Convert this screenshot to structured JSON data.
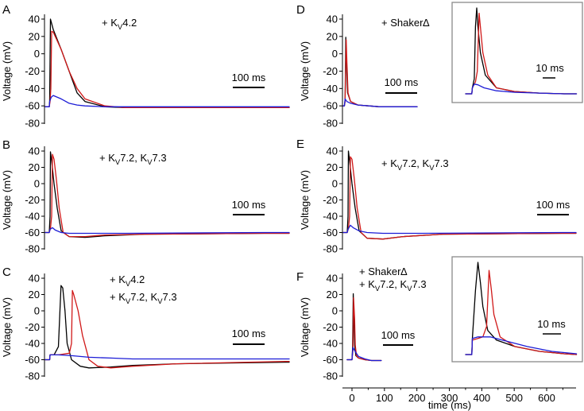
{
  "colors": {
    "black": "#000000",
    "red": "#d01818",
    "blue": "#1c1cd6",
    "inset_border": "#8a8a8a"
  },
  "yticks": [
    "40",
    "20",
    "0",
    "-20",
    "-40",
    "-60",
    "-80"
  ],
  "ylabel": "Voltage (mV)",
  "xaxis": {
    "ticks": [
      "0",
      "100",
      "200",
      "300",
      "400",
      "500",
      "600"
    ],
    "label": "time (ms)"
  },
  "scale_bar_main": "100 ms",
  "scale_bar_inset": "10 ms",
  "panels": [
    {
      "id": "A",
      "label": "A",
      "annotation_lines": [
        [
          "+ K",
          "V",
          "4.2"
        ]
      ]
    },
    {
      "id": "B",
      "label": "B",
      "annotation_lines": [
        [
          "+ K",
          "V",
          "7.2, K",
          "V",
          "7.3"
        ]
      ]
    },
    {
      "id": "C",
      "label": "C",
      "annotation_lines": [
        [
          "+ K",
          "V",
          "4.2"
        ],
        [
          "+ K",
          "V",
          "7.2, K",
          "V",
          "7.3"
        ]
      ]
    },
    {
      "id": "D",
      "label": "D",
      "annotation_lines": [
        [
          "+ Shaker∆"
        ]
      ]
    },
    {
      "id": "E",
      "label": "E",
      "annotation_lines": [
        [
          "+ K",
          "V",
          "7.2, K",
          "V",
          "7.3"
        ]
      ]
    },
    {
      "id": "F",
      "label": "F",
      "annotation_lines": [
        [
          "+ Shaker∆"
        ],
        [
          "+ K",
          "V",
          "7.2, K",
          "V",
          "7.3"
        ]
      ]
    }
  ],
  "chart_data": [
    {
      "panel": "A",
      "type": "line",
      "ylabel": "Voltage (mV)",
      "ylim": [
        -80,
        45
      ],
      "series": [
        {
          "color": "black",
          "x": [
            0,
            10,
            11,
            13,
            20,
            40,
            60,
            80,
            100,
            150,
            200,
            300,
            400,
            550
          ],
          "y": [
            -61,
            -61,
            -55,
            40,
            28,
            5,
            -20,
            -45,
            -55,
            -61,
            -62,
            -62,
            -62,
            -62
          ]
        },
        {
          "color": "red",
          "x": [
            0,
            10,
            12,
            14,
            16,
            20,
            40,
            60,
            80,
            100,
            150,
            200,
            300,
            400,
            550
          ],
          "y": [
            -61,
            -61,
            -55,
            -40,
            26,
            25,
            5,
            -20,
            -40,
            -52,
            -60,
            -62,
            -62,
            -62,
            -62
          ]
        },
        {
          "color": "blue",
          "x": [
            0,
            10,
            11,
            15,
            20,
            40,
            60,
            80,
            100,
            150,
            200,
            300,
            550
          ],
          "y": [
            -61,
            -61,
            -55,
            -50,
            -48,
            -52,
            -57,
            -59,
            -60,
            -61,
            -61,
            -61,
            -61
          ]
        }
      ]
    },
    {
      "panel": "B",
      "type": "line",
      "ylabel": "Voltage (mV)",
      "ylim": [
        -80,
        45
      ],
      "series": [
        {
          "color": "black",
          "x": [
            0,
            10,
            12,
            13,
            16,
            22,
            30,
            40,
            60,
            100,
            150,
            250,
            550
          ],
          "y": [
            -60,
            -60,
            -40,
            39,
            28,
            0,
            -30,
            -58,
            -65,
            -66,
            -64,
            -62,
            -61
          ]
        },
        {
          "color": "red",
          "x": [
            0,
            10,
            13,
            16,
            18,
            22,
            28,
            35,
            45,
            60,
            100,
            150,
            250,
            550
          ],
          "y": [
            -60,
            -60,
            -55,
            -40,
            36,
            30,
            5,
            -30,
            -60,
            -65,
            -65,
            -63,
            -62,
            -61
          ]
        },
        {
          "color": "blue",
          "x": [
            0,
            10,
            12,
            18,
            25,
            40,
            60,
            100,
            200,
            550
          ],
          "y": [
            -60,
            -60,
            -56,
            -54,
            -57,
            -60,
            -61,
            -61,
            -61,
            -60
          ]
        }
      ]
    },
    {
      "panel": "C",
      "type": "line",
      "ylabel": "Voltage (mV)",
      "ylim": [
        -80,
        45
      ],
      "series": [
        {
          "color": "black",
          "x": [
            0,
            10,
            11,
            20,
            30,
            36,
            40,
            45,
            50,
            60,
            80,
            100,
            150,
            200,
            300,
            550
          ],
          "y": [
            -60,
            -60,
            -54,
            -54,
            -44,
            31,
            28,
            0,
            -40,
            -60,
            -68,
            -70,
            -69,
            -67,
            -65,
            -63
          ]
        },
        {
          "color": "red",
          "x": [
            0,
            10,
            11,
            30,
            55,
            60,
            62,
            65,
            75,
            85,
            100,
            120,
            150,
            200,
            300,
            550
          ],
          "y": [
            -60,
            -60,
            -54,
            -54,
            -52,
            -40,
            25,
            20,
            0,
            -30,
            -60,
            -68,
            -70,
            -68,
            -65,
            -62
          ]
        },
        {
          "color": "blue",
          "x": [
            0,
            10,
            11,
            30,
            60,
            100,
            150,
            200,
            300,
            550
          ],
          "y": [
            -60,
            -60,
            -54,
            -54,
            -55,
            -57,
            -58,
            -59,
            -59,
            -59
          ]
        }
      ]
    },
    {
      "panel": "D",
      "type": "line",
      "ylabel": "Voltage (mV)",
      "ylim": [
        -80,
        45
      ],
      "series": [
        {
          "color": "black",
          "x": [
            0,
            3,
            5,
            7,
            9,
            12,
            20,
            40,
            70,
            100,
            150,
            200
          ],
          "y": [
            -60,
            -60,
            -55,
            19,
            -10,
            -45,
            -55,
            -59,
            -60,
            -61,
            -61,
            -61
          ]
        },
        {
          "color": "red",
          "x": [
            0,
            3,
            5,
            8,
            10,
            13,
            20,
            40,
            70,
            100,
            150,
            200
          ],
          "y": [
            -60,
            -60,
            -55,
            16,
            -10,
            -45,
            -55,
            -59,
            -60,
            -61,
            -61,
            -61
          ]
        },
        {
          "color": "blue",
          "x": [
            0,
            3,
            5,
            10,
            20,
            40,
            70,
            100,
            200
          ],
          "y": [
            -60,
            -60,
            -52,
            -55,
            -57,
            -59,
            -60,
            -61,
            -61
          ]
        }
      ],
      "inset": {
        "scale_bar": "10 ms",
        "series": [
          {
            "color": "black",
            "x": [
              0,
              5,
              5.5,
              7,
              8,
              9,
              10,
              12,
              16,
              25,
              40,
              60,
              80,
              90
            ],
            "y": [
              -60,
              -60,
              -52,
              -40,
              30,
              55,
              30,
              -5,
              -35,
              -52,
              -57,
              -59,
              -60,
              -60
            ]
          },
          {
            "color": "red",
            "x": [
              0,
              5,
              5.5,
              8,
              9.5,
              11,
              12,
              14,
              18,
              25,
              40,
              60,
              80,
              90
            ],
            "y": [
              -60,
              -60,
              -52,
              -44,
              -30,
              48,
              30,
              -5,
              -35,
              -52,
              -57,
              -59,
              -60,
              -60
            ]
          },
          {
            "color": "blue",
            "x": [
              0,
              5,
              5.5,
              7,
              10,
              15,
              25,
              40,
              60,
              80,
              90
            ],
            "y": [
              -60,
              -60,
              -52,
              -47,
              -48,
              -52,
              -56,
              -58,
              -59,
              -60,
              -60
            ]
          }
        ]
      }
    },
    {
      "panel": "E",
      "type": "line",
      "ylabel": "Voltage (mV)",
      "ylim": [
        -80,
        45
      ],
      "series": [
        {
          "color": "black",
          "x": [
            0,
            10,
            12,
            13,
            16,
            22,
            30,
            40,
            60,
            100,
            150,
            250,
            550
          ],
          "y": [
            -60,
            -60,
            -40,
            40,
            28,
            0,
            -30,
            -58,
            -67,
            -68,
            -65,
            -62,
            -61
          ]
        },
        {
          "color": "red",
          "x": [
            0,
            10,
            13,
            16,
            18,
            22,
            28,
            35,
            45,
            60,
            100,
            150,
            250,
            550
          ],
          "y": [
            -60,
            -60,
            -55,
            -40,
            33,
            30,
            5,
            -30,
            -60,
            -67,
            -68,
            -65,
            -62,
            -61
          ]
        },
        {
          "color": "blue",
          "x": [
            0,
            10,
            12,
            18,
            25,
            40,
            60,
            100,
            200,
            550
          ],
          "y": [
            -60,
            -60,
            -56,
            -51,
            -54,
            -58,
            -60,
            -61,
            -61,
            -60
          ]
        }
      ]
    },
    {
      "panel": "F",
      "type": "line",
      "xlabel": "time (ms)",
      "xlim": [
        -40,
        700
      ],
      "ylim": [
        -80,
        45
      ],
      "series": [
        {
          "color": "black",
          "x": [
            -15,
            0,
            2,
            4,
            6,
            8,
            12,
            20,
            40,
            60,
            90
          ],
          "y": [
            -60,
            -60,
            -45,
            21,
            -10,
            -42,
            -55,
            -58,
            -60,
            -61,
            -61
          ]
        },
        {
          "color": "red",
          "x": [
            -15,
            0,
            3,
            5,
            8,
            10,
            14,
            20,
            40,
            60,
            90
          ],
          "y": [
            -60,
            -60,
            -48,
            16,
            -10,
            -42,
            -55,
            -58,
            -60,
            -61,
            -61
          ]
        },
        {
          "color": "blue",
          "x": [
            -15,
            0,
            3,
            10,
            20,
            40,
            60,
            90
          ],
          "y": [
            -60,
            -60,
            -45,
            -50,
            -56,
            -59,
            -61,
            -61
          ]
        }
      ],
      "inset": {
        "scale_bar": "10 ms",
        "series": [
          {
            "color": "black",
            "x": [
              0,
              5,
              5.5,
              8,
              10,
              12,
              14,
              18,
              25,
              40,
              60,
              80,
              90
            ],
            "y": [
              -60,
              -60,
              -40,
              20,
              55,
              30,
              0,
              -30,
              -42,
              -50,
              -56,
              -59,
              -60
            ]
          },
          {
            "color": "red",
            "x": [
              0,
              5,
              5.5,
              10,
              14,
              17,
              19,
              21,
              23,
              28,
              40,
              60,
              80,
              90
            ],
            "y": [
              -60,
              -60,
              -42,
              -40,
              -38,
              -25,
              45,
              20,
              -10,
              -38,
              -50,
              -56,
              -59,
              -60
            ]
          },
          {
            "color": "blue",
            "x": [
              0,
              5,
              5.5,
              10,
              20,
              35,
              50,
              70,
              90
            ],
            "y": [
              -60,
              -60,
              -40,
              -38,
              -38,
              -44,
              -50,
              -56,
              -59
            ]
          }
        ]
      }
    }
  ]
}
